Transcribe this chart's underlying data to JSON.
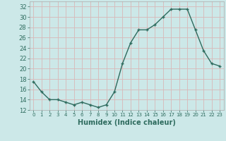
{
  "x": [
    0,
    1,
    2,
    3,
    4,
    5,
    6,
    7,
    8,
    9,
    10,
    11,
    12,
    13,
    14,
    15,
    16,
    17,
    18,
    19,
    20,
    21,
    22,
    23
  ],
  "y": [
    17.5,
    15.5,
    14,
    14,
    13.5,
    13,
    13.5,
    13,
    12.5,
    13,
    15.5,
    21,
    25,
    27.5,
    27.5,
    28.5,
    30,
    31.5,
    31.5,
    31.5,
    27.5,
    23.5,
    21,
    20.5
  ],
  "line_color": "#2e6b5e",
  "marker_color": "#2e6b5e",
  "bg_color": "#cce8e8",
  "grid_color": "#d8b8b8",
  "xlabel": "Humidex (Indice chaleur)",
  "ylim": [
    12,
    33
  ],
  "xlim": [
    -0.5,
    23.5
  ],
  "yticks": [
    12,
    14,
    16,
    18,
    20,
    22,
    24,
    26,
    28,
    30,
    32
  ],
  "xticks": [
    0,
    1,
    2,
    3,
    4,
    5,
    6,
    7,
    8,
    9,
    10,
    11,
    12,
    13,
    14,
    15,
    16,
    17,
    18,
    19,
    20,
    21,
    22,
    23
  ],
  "xtick_labels": [
    "0",
    "1",
    "2",
    "3",
    "4",
    "5",
    "6",
    "7",
    "8",
    "9",
    "10",
    "11",
    "12",
    "13",
    "14",
    "15",
    "16",
    "17",
    "18",
    "19",
    "20",
    "21",
    "22",
    "23"
  ],
  "line_width": 1.0,
  "marker_size": 2.5
}
